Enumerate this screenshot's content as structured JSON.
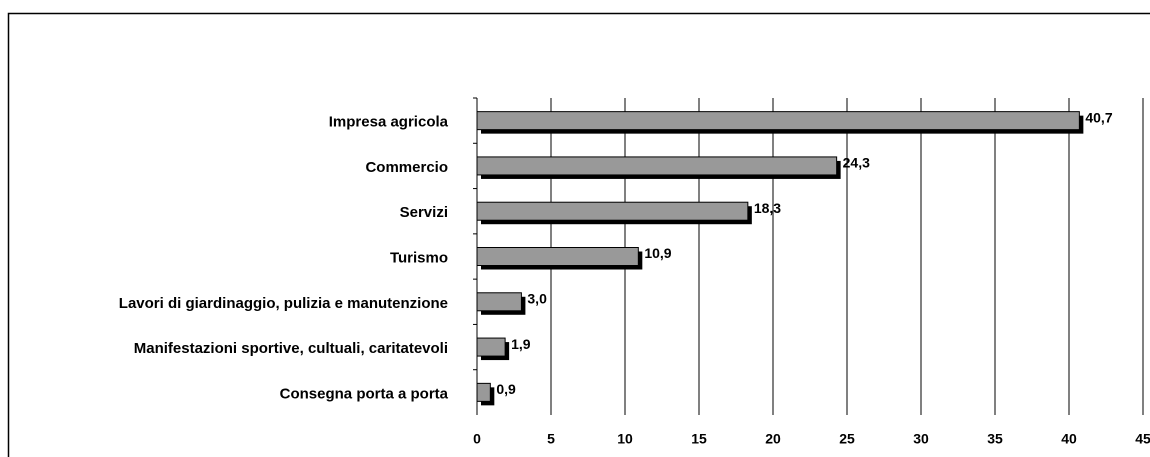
{
  "chart_data": {
    "type": "bar",
    "orientation": "horizontal",
    "categories": [
      "Impresa agricola",
      "Commercio",
      "Servizi",
      "Turismo",
      "Lavori di giardinaggio, pulizia e manutenzione",
      "Manifestazioni sportive, cultuali, caritatevoli",
      "Consegna porta a porta"
    ],
    "values": [
      40.7,
      24.3,
      18.3,
      10.9,
      3.0,
      1.9,
      0.9
    ],
    "value_labels": [
      "40,7",
      "24,3",
      "18,3",
      "10,9",
      "3,0",
      "1,9",
      "0,9"
    ],
    "color": "#999999",
    "xlim": [
      0,
      45
    ],
    "xticks": [
      0,
      5,
      10,
      15,
      20,
      25,
      30,
      35,
      40,
      45
    ],
    "grid": true
  }
}
